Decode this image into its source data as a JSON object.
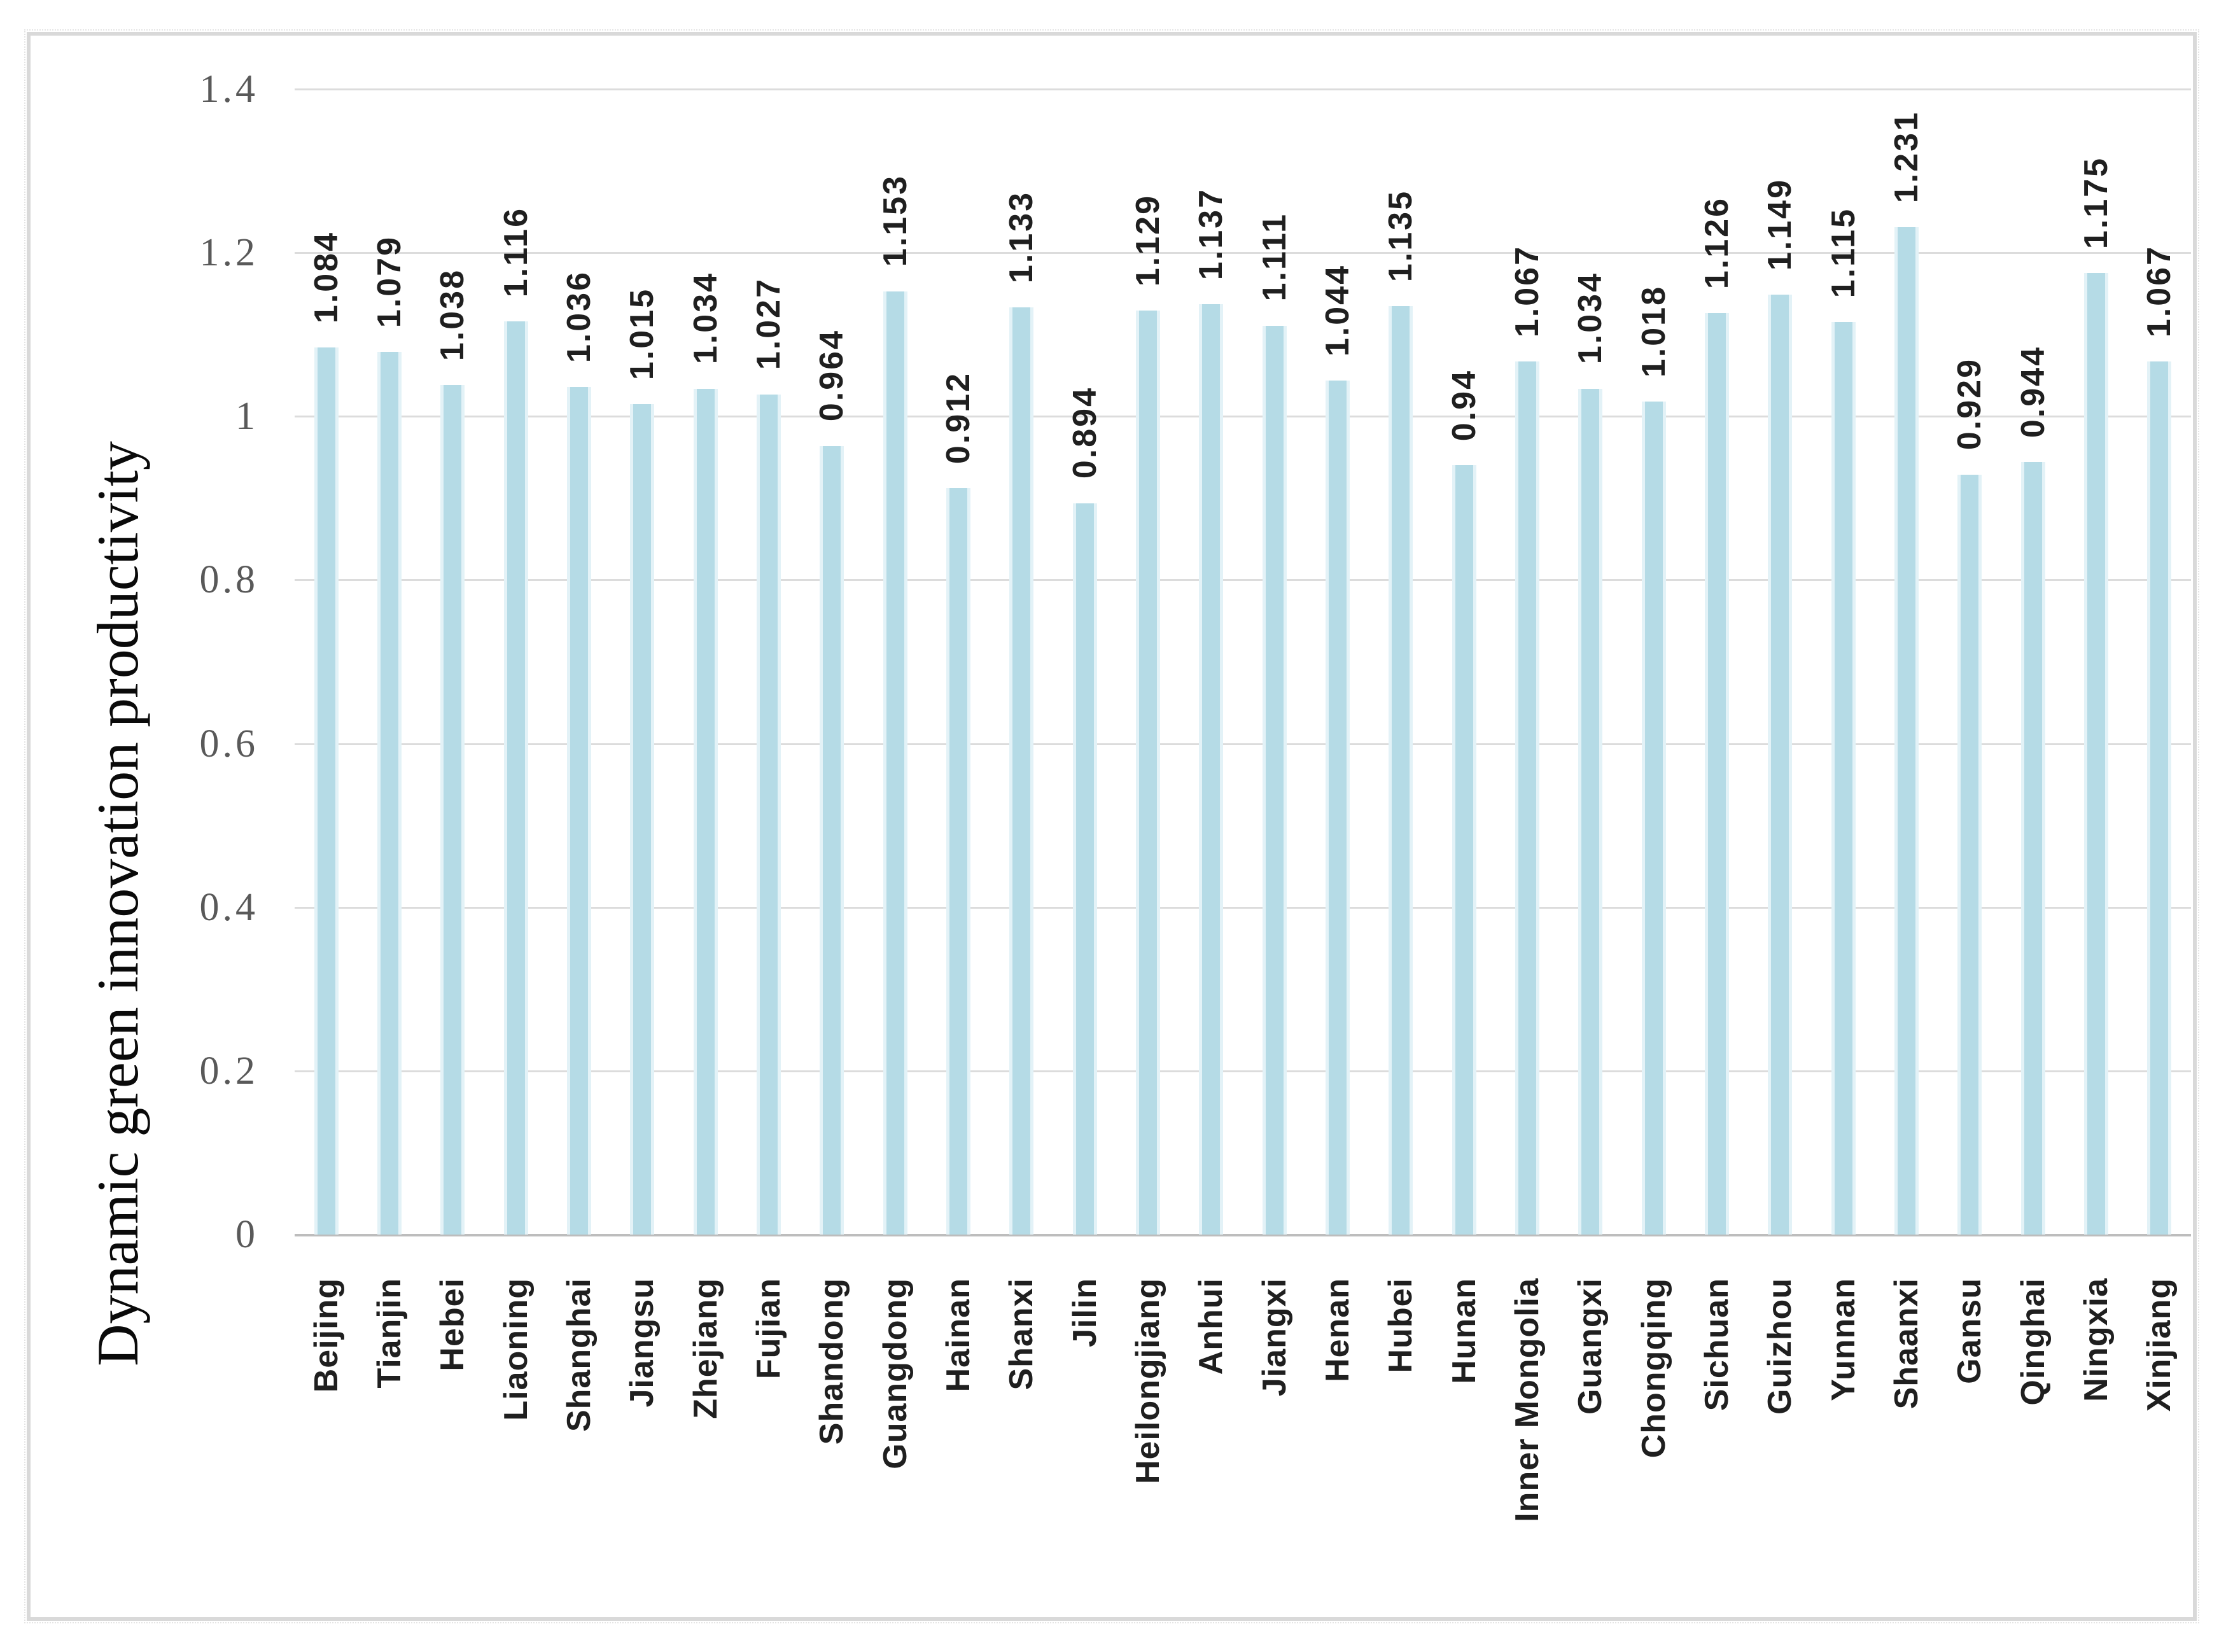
{
  "chart_data": {
    "type": "bar",
    "title": "",
    "ylabel": "Dynamic green innovation productivity",
    "xlabel": "",
    "categories": [
      "Beijing",
      "Tianjin",
      "Hebei",
      "Liaoning",
      "Shanghai",
      "Jiangsu",
      "Zhejiang",
      "Fujian",
      "Shandong",
      "Guangdong",
      "Hainan",
      "Shanxi",
      "Jilin",
      "Heilongjiang",
      "Anhui",
      "Jiangxi",
      "Henan",
      "Hubei",
      "Hunan",
      "Inner Mongolia",
      "Guangxi",
      "Chongqing",
      "Sichuan",
      "Guizhou",
      "Yunnan",
      "Shaanxi",
      "Gansu",
      "Qinghai",
      "Ningxia",
      "Xinjiang"
    ],
    "values": [
      1.084,
      1.079,
      1.038,
      1.116,
      1.036,
      1.015,
      1.034,
      1.027,
      0.964,
      1.153,
      0.912,
      1.133,
      0.894,
      1.129,
      1.137,
      1.111,
      1.044,
      1.135,
      0.94,
      1.067,
      1.034,
      1.018,
      1.126,
      1.149,
      1.115,
      1.231,
      0.929,
      0.944,
      1.175,
      1.067
    ],
    "value_labels": [
      "1.084",
      "1.079",
      "1.038",
      "1.116",
      "1.036",
      "1.015",
      "1.034",
      "1.027",
      "0.964",
      "1.153",
      "0.912",
      "1.133",
      "0.894",
      "1.129",
      "1.137",
      "1.111",
      "1.044",
      "1.135",
      "0.94",
      "1.067",
      "1.034",
      "1.018",
      "1.126",
      "1.149",
      "1.115",
      "1.231",
      "0.929",
      "0.944",
      "1.175",
      "1.067"
    ],
    "ylim": [
      0,
      1.4
    ],
    "yticks": [
      "0",
      "0.2",
      "0.4",
      "0.6",
      "0.8",
      "1",
      "1.2",
      "1.4"
    ],
    "grid": "horizontal",
    "legend": "none",
    "bar_label_rotation": -90,
    "x_label_rotation": -90,
    "colors": {
      "bar_fill": "#b5dbe6",
      "bar_edge_highlight": "#e3f2f7",
      "gridline": "#dcdcdc",
      "axis_line": "#bdbdbd",
      "tick_text": "#595959",
      "label_text": "#1f1f1f",
      "border": "#d9d9d9",
      "background": "#ffffff"
    }
  }
}
